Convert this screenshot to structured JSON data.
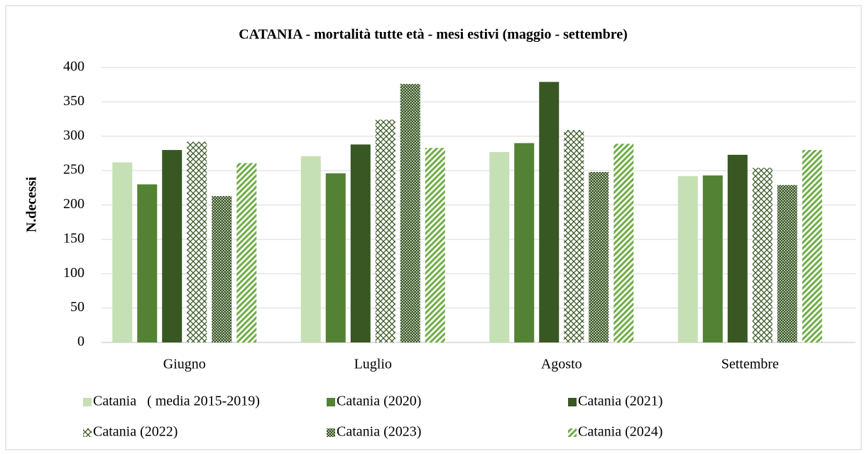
{
  "chart_data": {
    "type": "bar",
    "title": "CATANIA - mortalità tutte età - mesi estivi (maggio - settembre)",
    "y_label": "N.decessi",
    "categories": [
      "Giugno",
      "Luglio",
      "Agosto",
      "Settembre"
    ],
    "series": [
      {
        "name": "Catania   ( media 2015-2019)",
        "color": "#c5e0b4",
        "pattern": "solid",
        "values": [
          262,
          271,
          277,
          242
        ]
      },
      {
        "name": "Catania (2020)",
        "color": "#548235",
        "pattern": "solid",
        "values": [
          230,
          246,
          290,
          243
        ]
      },
      {
        "name": "Catania (2021)",
        "color": "#385723",
        "pattern": "solid",
        "values": [
          280,
          288,
          379,
          273
        ]
      },
      {
        "name": "Catania (2022)",
        "color": "#385723",
        "pattern": "diagcross",
        "values": [
          292,
          324,
          309,
          254
        ]
      },
      {
        "name": "Catania (2023)",
        "color": "#385723",
        "pattern": "checker",
        "values": [
          213,
          376,
          248,
          229
        ]
      },
      {
        "name": "Catania (2024)",
        "color": "#70ad47",
        "pattern": "diagonal",
        "values": [
          261,
          283,
          289,
          280
        ]
      }
    ],
    "ylim": [
      0,
      400
    ],
    "yticks": [
      0,
      50,
      100,
      150,
      200,
      250,
      300,
      350,
      400
    ],
    "grid": true
  }
}
